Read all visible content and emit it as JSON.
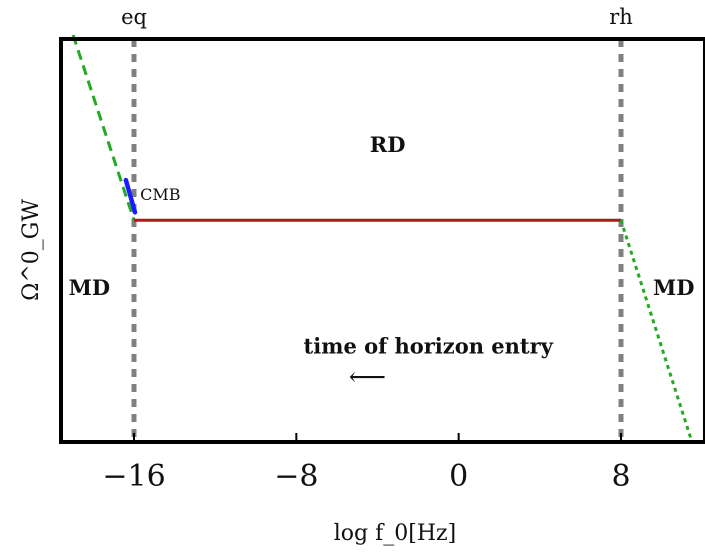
{
  "chart_data": {
    "type": "line",
    "title": "",
    "xlabel": "log f_0[Hz]",
    "ylabel": "Ω^0_GW",
    "x_ticks": [
      -16,
      -8,
      0,
      8
    ],
    "x_tick_labels": [
      "−16",
      "−8",
      "0",
      "8"
    ],
    "xlim": [
      -19.6,
      12
    ],
    "ylim": [
      0,
      10
    ],
    "grid": false,
    "vertical_markers": [
      {
        "x": -16,
        "label": "eq"
      },
      {
        "x": 8,
        "label": "rh"
      }
    ],
    "series": [
      {
        "color": "#22aa22",
        "style": "dashed",
        "x": [
          -19,
          -16
        ],
        "y": [
          10.1,
          5.5
        ]
      },
      {
        "color": "#1a1aff",
        "style": "solid",
        "x": [
          -16.4,
          -15.95
        ],
        "y": [
          6.5,
          5.7
        ]
      },
      {
        "color": "#b01818",
        "style": "solid",
        "x": [
          -16,
          8
        ],
        "y": [
          5.5,
          5.5
        ]
      },
      {
        "color": "#22aa22",
        "style": "dotted",
        "x": [
          8,
          11.5
        ],
        "y": [
          5.5,
          0
        ]
      }
    ],
    "annotations": [
      {
        "text": "CMB",
        "x": -15.7,
        "y": 6.0
      },
      {
        "text": "RD",
        "x": -3.5,
        "y": 7.2
      },
      {
        "text": "MD",
        "x": -18.2,
        "y": 3.65
      },
      {
        "text": "MD",
        "x": 10.6,
        "y": 3.65
      },
      {
        "text": "time of horizon entry",
        "x": -1.5,
        "y": 2.2
      },
      {
        "text": "⟵",
        "x": -4.5,
        "y": 1.4
      }
    ]
  }
}
